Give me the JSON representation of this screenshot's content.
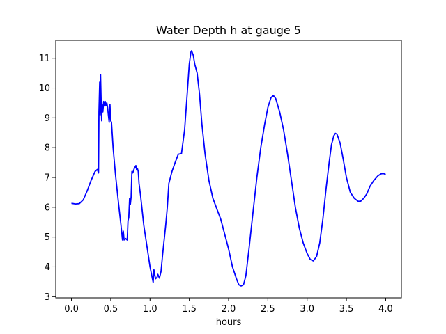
{
  "chart_data": {
    "type": "line",
    "title": "Water Depth h at gauge 5",
    "xlabel": "hours",
    "ylabel": "",
    "xlim": [
      -0.2,
      4.2
    ],
    "ylim": [
      2.96,
      11.6
    ],
    "x_ticks": [
      0.0,
      0.5,
      1.0,
      1.5,
      2.0,
      2.5,
      3.0,
      3.5,
      4.0
    ],
    "x_tick_labels": [
      "0.0",
      "0.5",
      "1.0",
      "1.5",
      "2.0",
      "2.5",
      "3.0",
      "3.5",
      "4.0"
    ],
    "y_ticks": [
      3,
      4,
      5,
      6,
      7,
      8,
      9,
      10,
      11
    ],
    "y_tick_labels": [
      "3",
      "4",
      "5",
      "6",
      "7",
      "8",
      "9",
      "10",
      "11"
    ],
    "grid": false,
    "series": [
      {
        "color": "#0000ff",
        "points": [
          [
            0.0,
            6.13
          ],
          [
            0.05,
            6.11
          ],
          [
            0.1,
            6.12
          ],
          [
            0.15,
            6.25
          ],
          [
            0.2,
            6.55
          ],
          [
            0.25,
            6.9
          ],
          [
            0.3,
            7.2
          ],
          [
            0.33,
            7.27
          ],
          [
            0.345,
            7.15
          ],
          [
            0.35,
            9.2
          ],
          [
            0.36,
            10.2
          ],
          [
            0.365,
            9.1
          ],
          [
            0.37,
            10.45
          ],
          [
            0.38,
            9.3
          ],
          [
            0.385,
            8.9
          ],
          [
            0.39,
            9.45
          ],
          [
            0.4,
            9.2
          ],
          [
            0.41,
            9.55
          ],
          [
            0.42,
            9.4
          ],
          [
            0.43,
            9.55
          ],
          [
            0.44,
            9.4
          ],
          [
            0.45,
            9.5
          ],
          [
            0.46,
            9.35
          ],
          [
            0.47,
            9.1
          ],
          [
            0.48,
            8.85
          ],
          [
            0.49,
            9.45
          ],
          [
            0.5,
            8.9
          ],
          [
            0.51,
            8.85
          ],
          [
            0.53,
            8.0
          ],
          [
            0.56,
            7.1
          ],
          [
            0.6,
            6.1
          ],
          [
            0.63,
            5.4
          ],
          [
            0.65,
            4.9
          ],
          [
            0.66,
            5.2
          ],
          [
            0.67,
            4.9
          ],
          [
            0.69,
            4.95
          ],
          [
            0.71,
            4.9
          ],
          [
            0.72,
            5.55
          ],
          [
            0.73,
            5.65
          ],
          [
            0.74,
            6.3
          ],
          [
            0.75,
            6.1
          ],
          [
            0.76,
            6.35
          ],
          [
            0.77,
            7.2
          ],
          [
            0.78,
            7.15
          ],
          [
            0.8,
            7.3
          ],
          [
            0.82,
            7.4
          ],
          [
            0.83,
            7.25
          ],
          [
            0.84,
            7.3
          ],
          [
            0.85,
            7.2
          ],
          [
            0.86,
            6.8
          ],
          [
            0.88,
            6.4
          ],
          [
            0.92,
            5.4
          ],
          [
            0.96,
            4.7
          ],
          [
            1.0,
            4.0
          ],
          [
            1.03,
            3.6
          ],
          [
            1.04,
            3.48
          ],
          [
            1.05,
            3.9
          ],
          [
            1.06,
            3.75
          ],
          [
            1.07,
            3.6
          ],
          [
            1.09,
            3.65
          ],
          [
            1.1,
            3.75
          ],
          [
            1.11,
            3.68
          ],
          [
            1.12,
            3.62
          ],
          [
            1.14,
            3.85
          ],
          [
            1.16,
            4.4
          ],
          [
            1.2,
            5.4
          ],
          [
            1.22,
            6.0
          ],
          [
            1.24,
            6.8
          ],
          [
            1.28,
            7.2
          ],
          [
            1.32,
            7.5
          ],
          [
            1.36,
            7.78
          ],
          [
            1.4,
            7.8
          ],
          [
            1.44,
            8.6
          ],
          [
            1.47,
            9.7
          ],
          [
            1.5,
            10.8
          ],
          [
            1.52,
            11.2
          ],
          [
            1.53,
            11.25
          ],
          [
            1.55,
            11.1
          ],
          [
            1.57,
            10.8
          ],
          [
            1.6,
            10.5
          ],
          [
            1.63,
            9.8
          ],
          [
            1.66,
            8.8
          ],
          [
            1.7,
            7.8
          ],
          [
            1.75,
            6.9
          ],
          [
            1.8,
            6.3
          ],
          [
            1.85,
            5.95
          ],
          [
            1.9,
            5.6
          ],
          [
            1.95,
            5.1
          ],
          [
            2.0,
            4.6
          ],
          [
            2.05,
            4.0
          ],
          [
            2.1,
            3.6
          ],
          [
            2.13,
            3.4
          ],
          [
            2.16,
            3.36
          ],
          [
            2.19,
            3.4
          ],
          [
            2.22,
            3.7
          ],
          [
            2.26,
            4.6
          ],
          [
            2.31,
            5.8
          ],
          [
            2.36,
            7.0
          ],
          [
            2.41,
            8.0
          ],
          [
            2.46,
            8.8
          ],
          [
            2.5,
            9.35
          ],
          [
            2.54,
            9.68
          ],
          [
            2.57,
            9.75
          ],
          [
            2.6,
            9.65
          ],
          [
            2.65,
            9.2
          ],
          [
            2.7,
            8.6
          ],
          [
            2.75,
            7.8
          ],
          [
            2.8,
            6.9
          ],
          [
            2.85,
            6.0
          ],
          [
            2.9,
            5.3
          ],
          [
            2.95,
            4.8
          ],
          [
            3.0,
            4.45
          ],
          [
            3.04,
            4.25
          ],
          [
            3.08,
            4.2
          ],
          [
            3.12,
            4.35
          ],
          [
            3.16,
            4.8
          ],
          [
            3.2,
            5.6
          ],
          [
            3.24,
            6.6
          ],
          [
            3.28,
            7.5
          ],
          [
            3.31,
            8.1
          ],
          [
            3.34,
            8.4
          ],
          [
            3.36,
            8.48
          ],
          [
            3.38,
            8.45
          ],
          [
            3.42,
            8.15
          ],
          [
            3.46,
            7.6
          ],
          [
            3.5,
            7.0
          ],
          [
            3.55,
            6.5
          ],
          [
            3.6,
            6.3
          ],
          [
            3.65,
            6.2
          ],
          [
            3.68,
            6.2
          ],
          [
            3.72,
            6.3
          ],
          [
            3.76,
            6.45
          ],
          [
            3.8,
            6.7
          ],
          [
            3.85,
            6.9
          ],
          [
            3.9,
            7.05
          ],
          [
            3.94,
            7.12
          ],
          [
            3.97,
            7.13
          ],
          [
            4.0,
            7.1
          ]
        ]
      }
    ]
  }
}
